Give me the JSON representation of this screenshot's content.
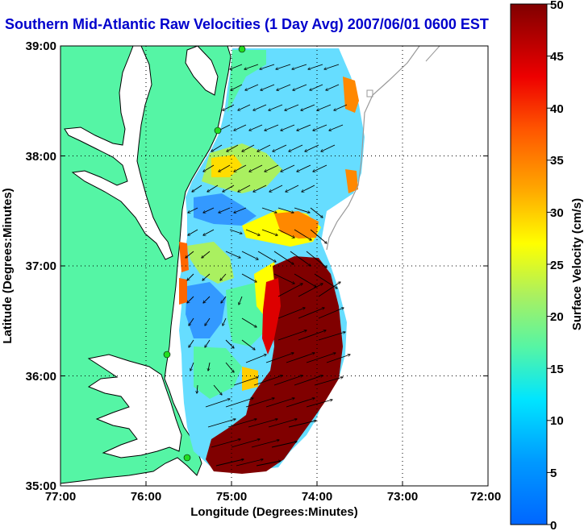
{
  "title": "Southern Mid-Atlantic Raw Velocities (1 Day Avg) 2007/06/01 0600 EST",
  "axes": {
    "xlabel": "Longitude (Degrees:Minutes)",
    "ylabel": "Latitude (Degrees:Minutes)",
    "x_ticks": [
      "77:00",
      "76:00",
      "75:00",
      "74:00",
      "73:00",
      "72:00"
    ],
    "y_ticks": [
      "39:00",
      "38:00",
      "37:00",
      "36:00",
      "35:00"
    ],
    "x_range": [
      -77,
      -72
    ],
    "y_range": [
      35,
      39
    ],
    "grid": "dotted"
  },
  "colorbar": {
    "label": "Surface Velocity (cm/s)",
    "ticks": [
      "0",
      "5",
      "10",
      "15",
      "20",
      "25",
      "30",
      "35",
      "40",
      "45",
      "50"
    ],
    "range": [
      0,
      50
    ],
    "colormap": "jet"
  },
  "colors": {
    "title": "#0000cc",
    "land": "#55f5a5",
    "water": "#ffffff",
    "vectors": "#000000",
    "stations": "#22dd22"
  },
  "stations_legend": "green dots mark HF radar sites along the coast"
}
